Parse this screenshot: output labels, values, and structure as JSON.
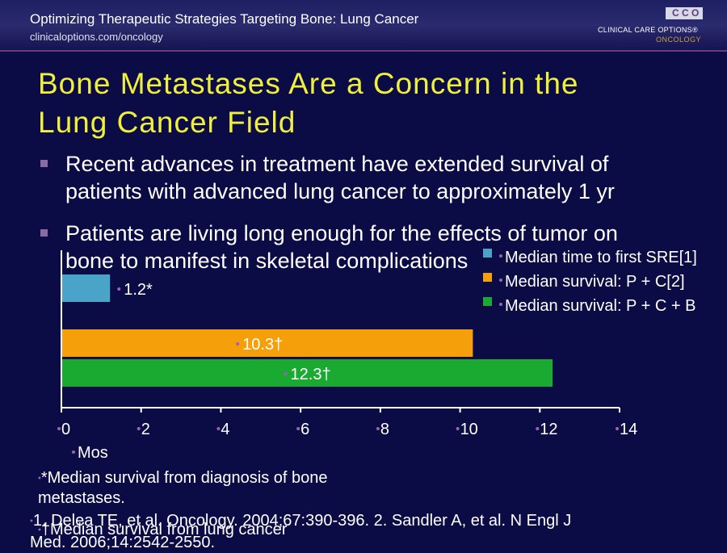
{
  "header": {
    "title": "Optimizing Therapeutic Strategies Targeting Bone: Lung Cancer",
    "url": "clinicaloptions.com/oncology",
    "logo_line1": "CLINICAL CARE OPTIONS®",
    "logo_line2": "ONCOLOGY",
    "logo_letters": [
      "C",
      "C",
      "O"
    ]
  },
  "slide": {
    "title_line1": "Bone Metastases Are a Concern in the",
    "title_line2": "Lung Cancer Field",
    "bullets": [
      {
        "line1": "Recent advances in treatment have extended survival of",
        "line2": "patients with advanced lung cancer to approximately 1 yr"
      },
      {
        "line1": "Patients are living long enough for the effects of tumor on",
        "line2": "bone to manifest in skeletal complications"
      }
    ]
  },
  "chart_data": {
    "type": "bar",
    "orientation": "horizontal",
    "xlabel": "Mos",
    "xlim": [
      0,
      14
    ],
    "xticks": [
      "0",
      "2",
      "4",
      "6",
      "8",
      "10",
      "12",
      "14"
    ],
    "series": [
      {
        "name": "Median time to first SRE[1]",
        "value": 1.2,
        "label": "1.2*",
        "color": "#4aa3c8"
      },
      {
        "name": "Median survival: P + C[2]",
        "value": 10.3,
        "label": "10.3†",
        "color": "#f5a00a"
      },
      {
        "name": "Median survival: P + C + B",
        "value": 12.3,
        "label": "12.3†",
        "color": "#1aaa32"
      }
    ],
    "legend_position": "top-right"
  },
  "footnotes": {
    "note1_line1": "*Median survival from diagnosis of bone",
    "note1_line2": "metastases.",
    "note2": "†Median survival from lung cancer",
    "reference_line1": "1. Delea TE, et al. Oncology. 2004;67:390-396. 2. Sandler A, et al. N Engl J",
    "reference_line2": "Med. 2006;14:2542-2550."
  }
}
